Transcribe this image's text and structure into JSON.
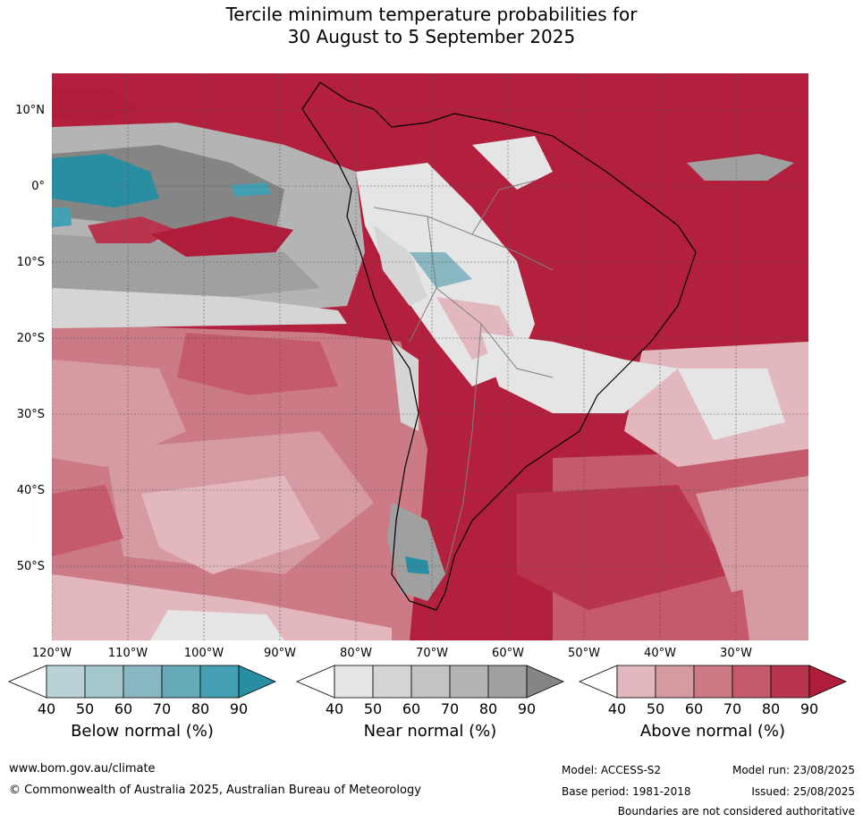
{
  "title": {
    "line1": "Tercile minimum temperature probabilities for",
    "line2": "30 August to 5 September 2025"
  },
  "map": {
    "lat_labels": [
      "10°N",
      "0°",
      "10°S",
      "20°S",
      "30°S",
      "40°S",
      "50°S"
    ],
    "lon_labels": [
      "120°W",
      "110°W",
      "100°W",
      "90°W",
      "80°W",
      "70°W",
      "60°W",
      "50°W",
      "40°W",
      "30°W"
    ],
    "region": "South America and surrounding oceans"
  },
  "colorbars": {
    "below": {
      "label": "Below normal (%)",
      "ticks": [
        "40",
        "50",
        "60",
        "70",
        "80",
        "90"
      ],
      "colors": [
        "#ffffff",
        "#b8d2d8",
        "#a4c6cd",
        "#88b7c1",
        "#66a9b7",
        "#43a0b3",
        "#2a8ea3"
      ]
    },
    "near": {
      "label": "Near normal (%)",
      "ticks": [
        "40",
        "50",
        "60",
        "70",
        "80",
        "90"
      ],
      "colors": [
        "#ffffff",
        "#e5e5e5",
        "#d5d5d5",
        "#c4c4c4",
        "#b4b4b4",
        "#a0a0a0",
        "#858585"
      ]
    },
    "above": {
      "label": "Above normal (%)",
      "ticks": [
        "40",
        "50",
        "60",
        "70",
        "80",
        "90"
      ],
      "colors": [
        "#ffffff",
        "#e2b8be",
        "#d69aa3",
        "#cc7b86",
        "#c45a6b",
        "#b9354d",
        "#b01d3a"
      ]
    }
  },
  "footer": {
    "website": "www.bom.gov.au/climate",
    "copyright": "© Commonwealth of Australia 2025, Australian Bureau of Meteorology",
    "model": "Model: ACCESS-S2",
    "model_run": "Model run: 23/08/2025",
    "base_period": "Base period: 1981-2018",
    "issued": "Issued: 25/08/2025",
    "disclaimer": "Boundaries are not considered authoritative"
  }
}
